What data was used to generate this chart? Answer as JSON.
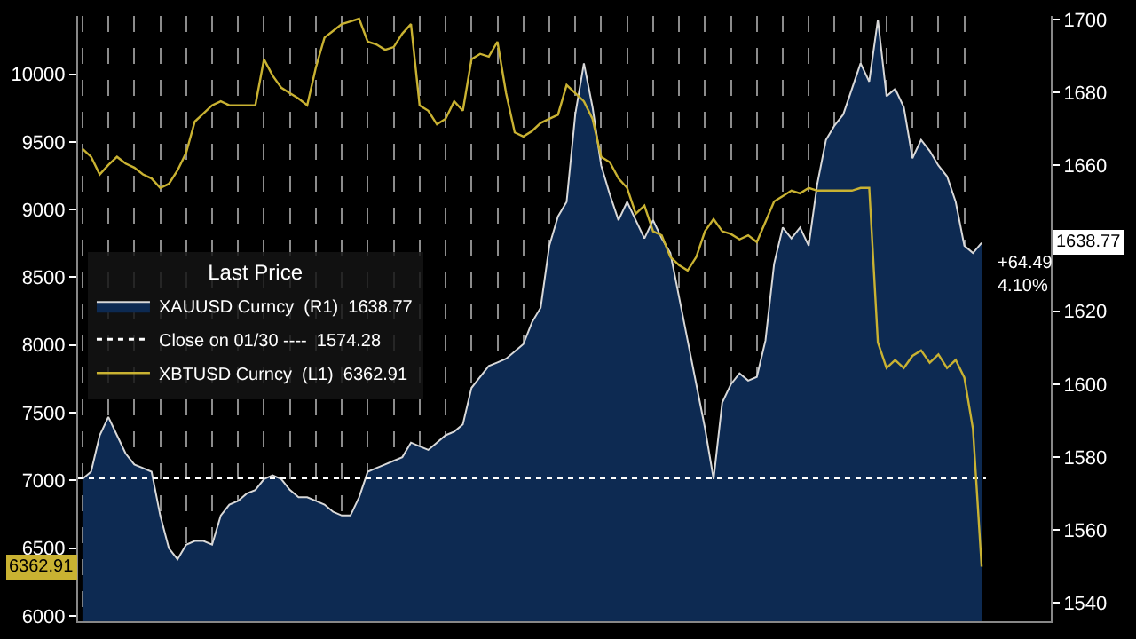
{
  "chart_data": {
    "type": "line",
    "categories": [
      null,
      null,
      null,
      null,
      null,
      null,
      null,
      null,
      null,
      null,
      null,
      null,
      null,
      null,
      null,
      null,
      null,
      null,
      null,
      null,
      null,
      null,
      null,
      null,
      null,
      null,
      null,
      null,
      null,
      null,
      null,
      null,
      null,
      null,
      null,
      null,
      null,
      null,
      null,
      null,
      null,
      null,
      null,
      null,
      null,
      null,
      null,
      null,
      null,
      null,
      null,
      null,
      null,
      null,
      null,
      null,
      null,
      null,
      null,
      null,
      null,
      null,
      null,
      null,
      null,
      null,
      null,
      null,
      null,
      null,
      null,
      null,
      null,
      null,
      null,
      null,
      null,
      null,
      null,
      null,
      null,
      null,
      null,
      null,
      null,
      null,
      null,
      null,
      null,
      null,
      null,
      null,
      null,
      null,
      null,
      null,
      null,
      null,
      null,
      null,
      null,
      null,
      null,
      null,
      null
    ],
    "legend_title": "Last Price",
    "series": [
      {
        "name": "XAUUSD Curncy  (R1)  1638.77",
        "type": "area",
        "axis": "y2",
        "color": "#0d2a52",
        "values": [
          1574,
          1576,
          1586,
          1591,
          1586,
          1581,
          1578,
          1577,
          1576,
          1564,
          1555,
          1552,
          1556,
          1557,
          1557,
          1556,
          1564,
          1567,
          1568,
          1570,
          1571,
          1574,
          1575,
          1574,
          1571,
          1569,
          1569,
          1568,
          1567,
          1565,
          1564,
          1564,
          1569,
          1576,
          1577,
          1578,
          1579,
          1580,
          1584,
          1583,
          1582,
          1584,
          1586,
          1587,
          1589,
          1599,
          1602,
          1605,
          1606,
          1607,
          1609,
          1611,
          1617,
          1621,
          1638,
          1646,
          1650,
          1674,
          1688,
          1676,
          1660,
          1652,
          1645,
          1650,
          1645,
          1640,
          1645,
          1640,
          1636,
          1624,
          1612,
          1600,
          1588,
          1574,
          1595,
          1600,
          1603,
          1601,
          1602,
          1612,
          1633,
          1643,
          1640,
          1643,
          1638,
          1655,
          1667,
          1671,
          1674,
          1681,
          1688,
          1683,
          1700,
          1679,
          1681,
          1676,
          1662,
          1667,
          1664,
          1660,
          1657,
          1650,
          1638,
          1636,
          1638.77
        ]
      },
      {
        "name": "XBTUSD Curncy  (L1)  6362.91",
        "color": "#c9b232",
        "values": [
          9450,
          9390,
          9260,
          9330,
          9390,
          9340,
          9310,
          9260,
          9230,
          9160,
          9190,
          9290,
          9420,
          9650,
          9710,
          9770,
          9800,
          9770,
          9770,
          9770,
          9770,
          10110,
          9990,
          9900,
          9860,
          9820,
          9770,
          10050,
          10270,
          10320,
          10370,
          10390,
          10410,
          10240,
          10220,
          10180,
          10200,
          10300,
          10370,
          9770,
          9730,
          9630,
          9670,
          9800,
          9730,
          10110,
          10150,
          10130,
          10240,
          9860,
          9570,
          9540,
          9580,
          9640,
          9670,
          9700,
          9920,
          9860,
          9800,
          9670,
          9390,
          9350,
          9230,
          9160,
          8970,
          9030,
          8840,
          8810,
          8650,
          8590,
          8550,
          8650,
          8840,
          8930,
          8840,
          8820,
          8780,
          8810,
          8760,
          8910,
          9060,
          9100,
          9140,
          9120,
          9160,
          9140,
          9140,
          9140,
          9140,
          9140,
          9160,
          9160,
          8020,
          7830,
          7890,
          7830,
          7920,
          7960,
          7870,
          7930,
          7830,
          7890,
          7760,
          7380,
          6362.91
        ]
      }
    ],
    "ref_lines": [
      {
        "axis": "y2",
        "value": 1574.28,
        "label": "Close on 01/30 ----  1574.28",
        "color": "#ffffff",
        "line_style": "dotted"
      }
    ],
    "annotations": [
      "+64.49\n4.10%",
      "1638.77",
      "6362.91"
    ],
    "ylim": [
      5960,
      10430
    ],
    "yticks": [
      6000,
      6500,
      7000,
      7500,
      8000,
      8500,
      9000,
      9500,
      10000
    ],
    "y2lim": [
      1535,
      1701
    ],
    "y2ticks": [
      1540,
      1560,
      1580,
      1600,
      1620,
      1660,
      1680,
      1700
    ],
    "grid": "x",
    "legend": "left",
    "marker": "none",
    "line_style": "solid",
    "tick_labels": "y"
  }
}
